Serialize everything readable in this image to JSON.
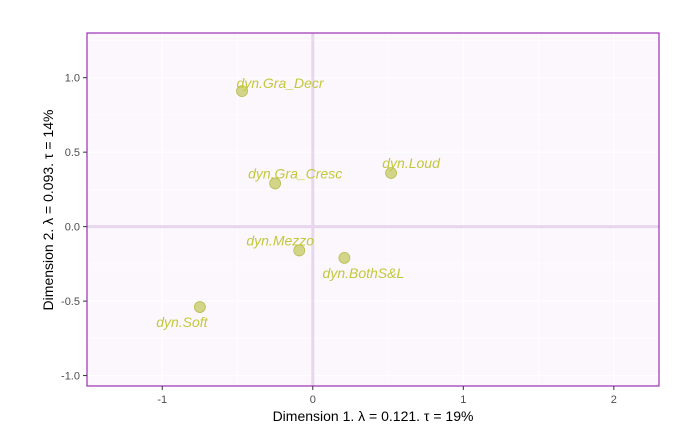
{
  "chart_data": {
    "type": "scatter",
    "title": "",
    "xlabel": "Dimension 1.   λ = 0.121.  τ = 19%",
    "ylabel": "Dimension 2.   λ = 0.093.  τ = 14%",
    "xlim": [
      -1.5,
      2.3
    ],
    "ylim": [
      -1.07,
      1.3
    ],
    "x_ticks": [
      -1,
      0,
      1,
      2
    ],
    "x_tick_labels": [
      "-1",
      "0",
      "1",
      "2"
    ],
    "y_ticks": [
      -1.0,
      -0.5,
      0.0,
      0.5,
      1.0
    ],
    "y_tick_labels": [
      "-1.0",
      "-0.5",
      "0.0",
      "0.5",
      "1.0"
    ],
    "grid": true,
    "points": [
      {
        "label": "dyn.Gra_Decr",
        "x": -0.47,
        "y": 0.91
      },
      {
        "label": "dyn.Gra_Cresc",
        "x": -0.25,
        "y": 0.29
      },
      {
        "label": "dyn.Loud",
        "x": 0.52,
        "y": 0.36
      },
      {
        "label": "dyn.Mezzo",
        "x": -0.09,
        "y": -0.16
      },
      {
        "label": "dyn.BothS&L",
        "x": 0.21,
        "y": -0.21
      },
      {
        "label": "dyn.Soft",
        "x": -0.75,
        "y": -0.54
      }
    ],
    "colors": {
      "point_fill": "#cdd07a",
      "point_stroke": "#b9bd55",
      "label": "#c3c83a",
      "panel_bg": "#fbf7fd",
      "panel_border": "#9b30b5",
      "zero_line": "#e7d6ee",
      "grid": "#ffffff"
    }
  }
}
